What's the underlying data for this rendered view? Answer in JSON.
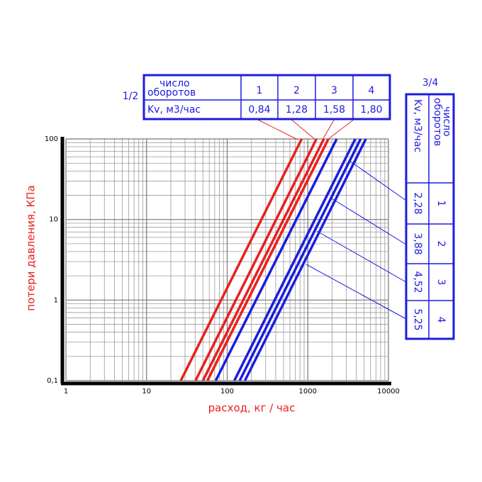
{
  "chart_data": {
    "type": "line",
    "xlabel": "расход, кг / час",
    "ylabel": "потери давления, КПа",
    "log_x": true,
    "log_y": true,
    "grid": true,
    "xlim": [
      1,
      10000
    ],
    "ylim": [
      0.1,
      100
    ],
    "xticks": [
      1,
      10,
      100,
      1000,
      10000
    ],
    "yticks": [
      {
        "value": 0.1,
        "label": "0,1"
      },
      1,
      10,
      100
    ],
    "series": [
      {
        "color": "#e8201c",
        "x": [
          26.6,
          840
        ],
        "y": [
          0.1,
          100
        ]
      },
      {
        "color": "#e8201c",
        "x": [
          40.5,
          1280
        ],
        "y": [
          0.1,
          100
        ]
      },
      {
        "color": "#e8201c",
        "x": [
          50.0,
          1580
        ],
        "y": [
          0.1,
          100
        ]
      },
      {
        "color": "#e8201c",
        "x": [
          56.9,
          1800
        ],
        "y": [
          0.1,
          100
        ]
      },
      {
        "color": "#1c1ce0",
        "x": [
          72.1,
          2280
        ],
        "y": [
          0.1,
          100
        ]
      },
      {
        "color": "#1c1ce0",
        "x": [
          122.7,
          3880
        ],
        "y": [
          0.1,
          100
        ]
      },
      {
        "color": "#1c1ce0",
        "x": [
          142.9,
          4520
        ],
        "y": [
          0.1,
          100
        ]
      },
      {
        "color": "#1c1ce0",
        "x": [
          166.0,
          5250
        ],
        "y": [
          0.1,
          100
        ]
      }
    ]
  },
  "tables": [
    {
      "title": "1/2",
      "header_label": [
        "число",
        "оборотов"
      ],
      "numbers": [
        "1",
        "2",
        "3",
        "4"
      ],
      "kv_label": "Kv, м3/час",
      "kv": [
        "0,84",
        "1,28",
        "1,58",
        "1,80"
      ]
    },
    {
      "title": "3/4",
      "header_label": [
        "число",
        "оборотов"
      ],
      "numbers": [
        "1",
        "2",
        "3",
        "4"
      ],
      "kv_label": "Kv, м3/час",
      "kv": [
        "2,28",
        "3,88",
        "4,52",
        "5,25"
      ]
    }
  ]
}
